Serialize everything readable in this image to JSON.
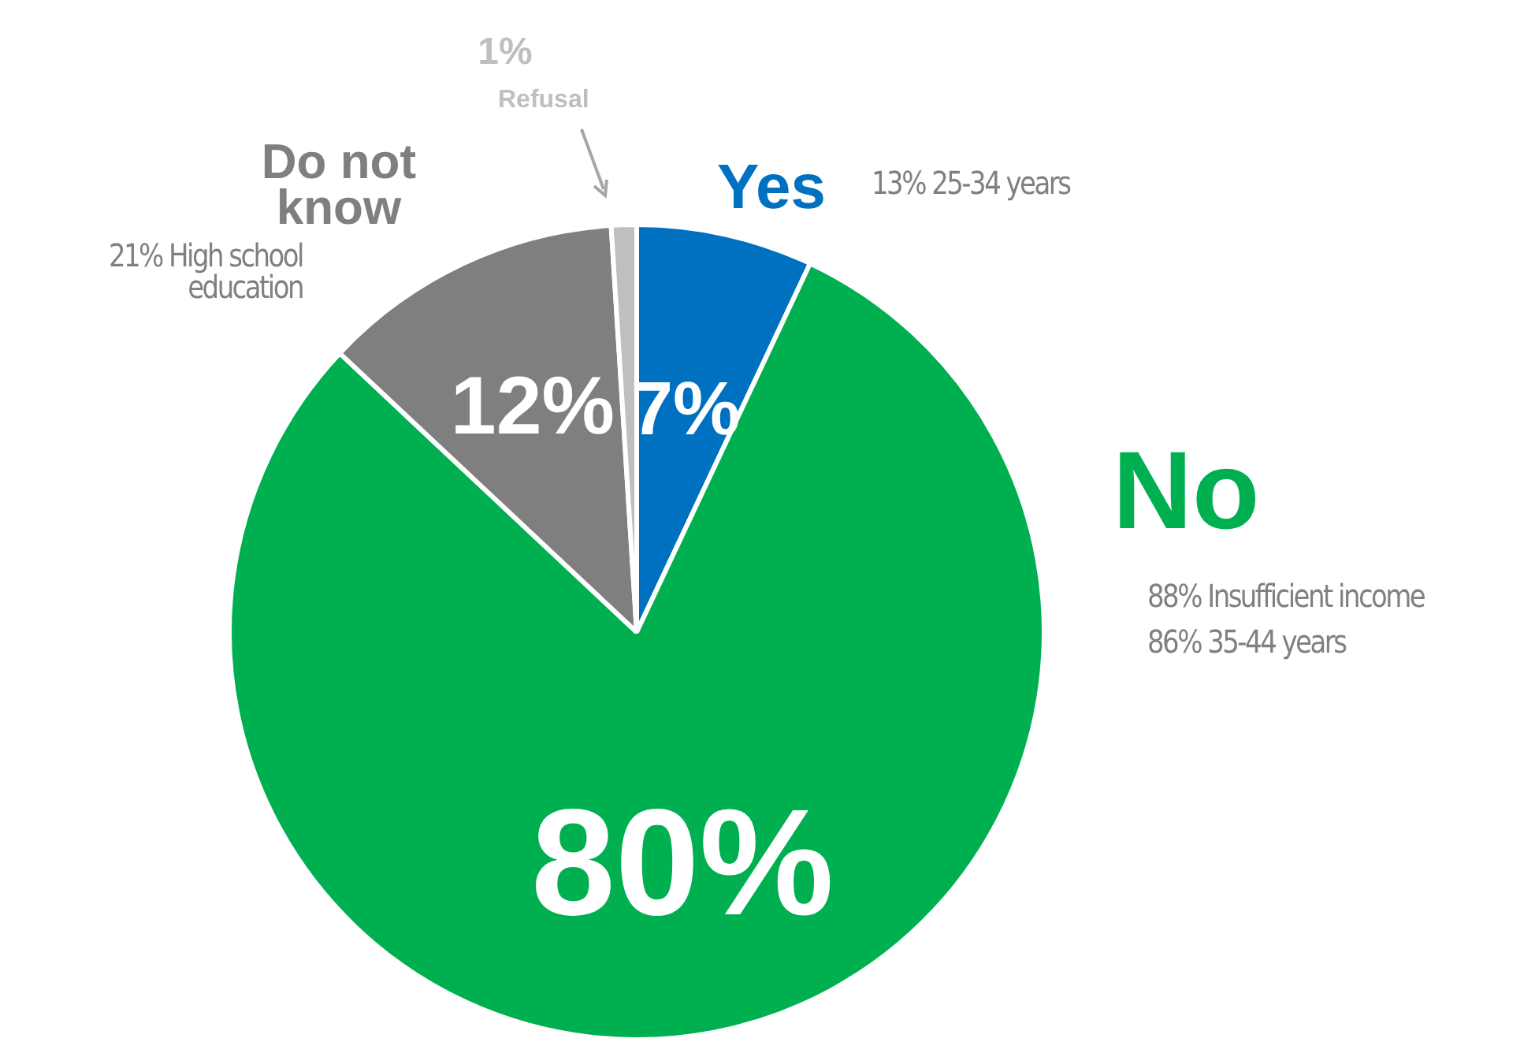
{
  "chart_data": {
    "type": "pie",
    "categories": [
      "Yes",
      "No",
      "Do not know",
      "Refusal"
    ],
    "values": [
      7,
      80,
      12,
      1
    ],
    "colors": [
      "#0070c0",
      "#00b050",
      "#7f7f7f",
      "#bfbfbf"
    ],
    "value_labels": [
      "7%",
      "80%",
      "12%",
      "1%"
    ],
    "annotations": [
      "13% 25-34 years",
      "88% Insufficient income",
      "86% 35-44 years",
      "21% High school education"
    ]
  }
}
